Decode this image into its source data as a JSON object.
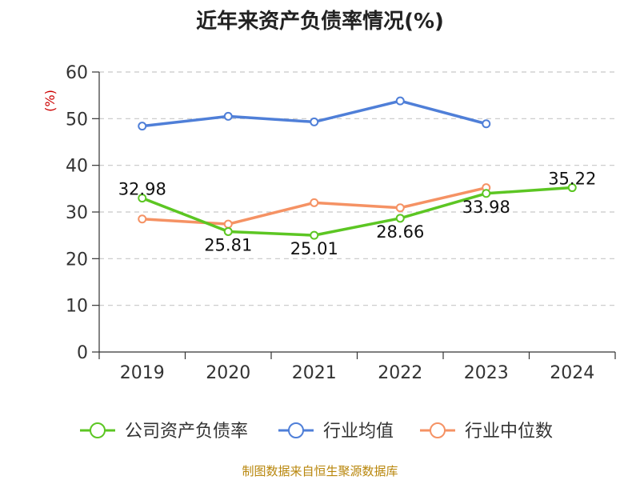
{
  "chart_data": {
    "type": "line",
    "title": "近年来资产负债率情况(%)",
    "ylabel": "(%)",
    "categories": [
      "2019",
      "2020",
      "2021",
      "2022",
      "2023",
      "2024"
    ],
    "ylim": [
      0,
      60
    ],
    "yticks": [
      0,
      10,
      20,
      30,
      40,
      50,
      60
    ],
    "grid": true,
    "legend_position": "bottom",
    "series": [
      {
        "name": "公司资产负债率",
        "color": "#5cc623",
        "values": [
          32.98,
          25.81,
          25.01,
          28.66,
          33.98,
          35.22
        ],
        "labels": [
          "32.98",
          "25.81",
          "25.01",
          "28.66",
          "33.98",
          "35.22"
        ]
      },
      {
        "name": "行业均值",
        "color": "#4f7fd8",
        "values": [
          48.4,
          50.5,
          49.3,
          53.8,
          48.9,
          null
        ]
      },
      {
        "name": "行业中位数",
        "color": "#f59264",
        "values": [
          28.5,
          27.4,
          32.0,
          30.9,
          35.2,
          null
        ]
      }
    ]
  },
  "source": "制图数据来自恒生聚源数据库"
}
